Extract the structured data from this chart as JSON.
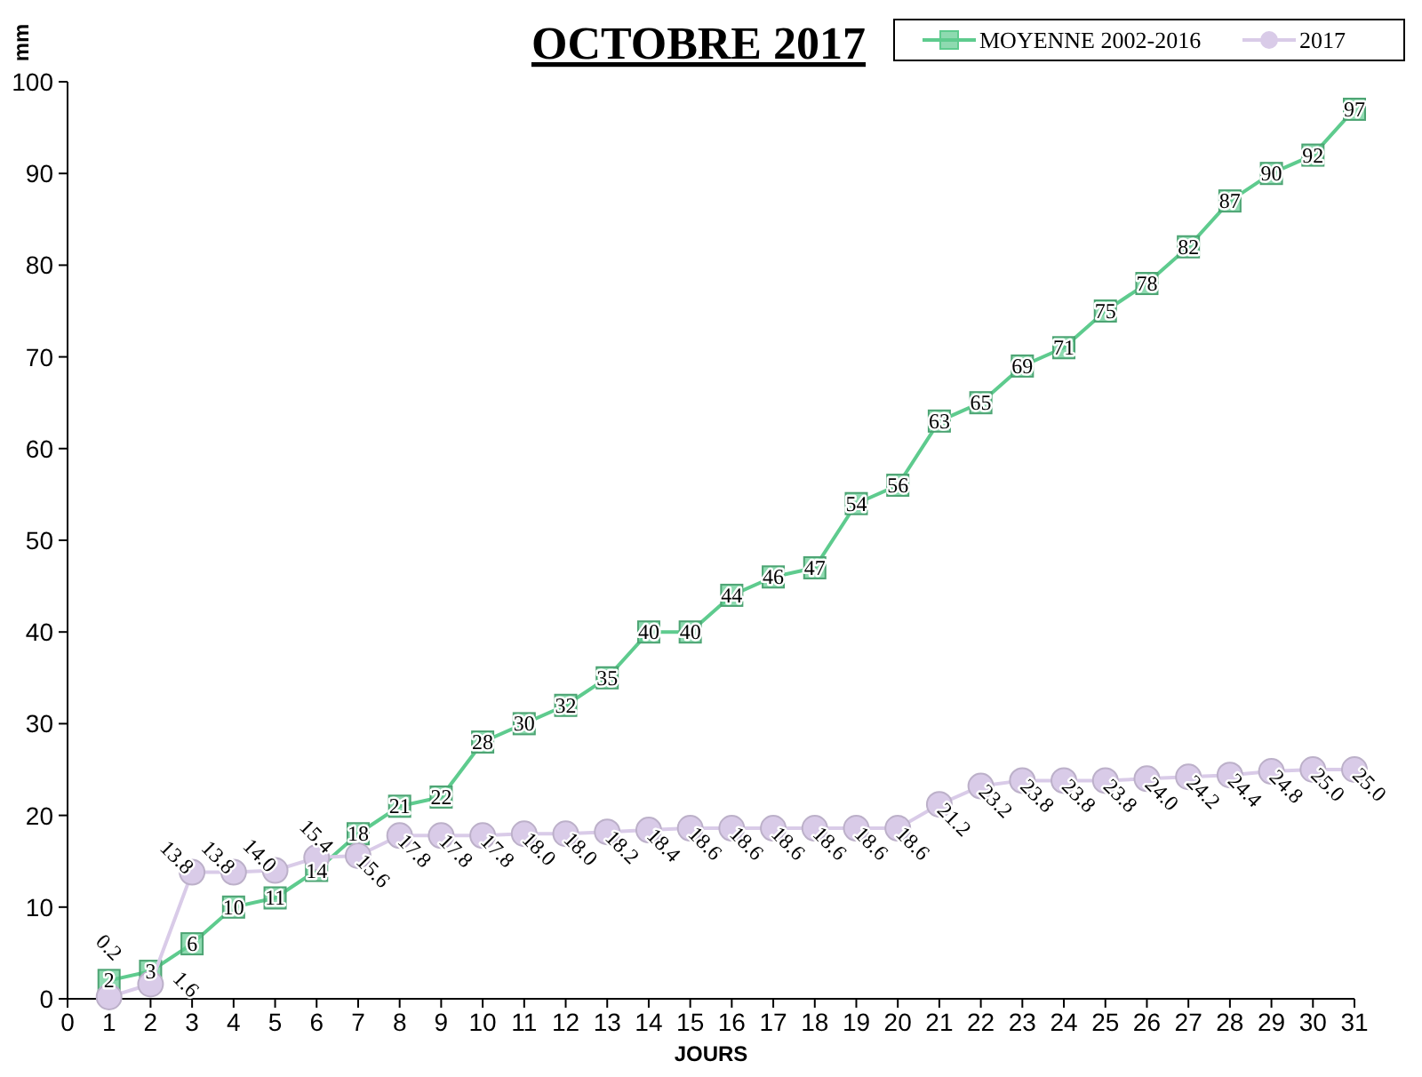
{
  "chart_data": {
    "type": "line",
    "title": "OCTOBRE 2017",
    "xlabel": "JOURS",
    "ylabel": "mm",
    "x": [
      1,
      2,
      3,
      4,
      5,
      6,
      7,
      8,
      9,
      10,
      11,
      12,
      13,
      14,
      15,
      16,
      17,
      18,
      19,
      20,
      21,
      22,
      23,
      24,
      25,
      26,
      27,
      28,
      29,
      30,
      31
    ],
    "xlim": [
      0,
      31
    ],
    "xticks": [
      0,
      1,
      2,
      3,
      4,
      5,
      6,
      7,
      8,
      9,
      10,
      11,
      12,
      13,
      14,
      15,
      16,
      17,
      18,
      19,
      20,
      21,
      22,
      23,
      24,
      25,
      26,
      27,
      28,
      29,
      30,
      31
    ],
    "ylim": [
      0,
      100
    ],
    "yticks": [
      0,
      10,
      20,
      30,
      40,
      50,
      60,
      70,
      80,
      90,
      100
    ],
    "grid": false,
    "legend": "top right",
    "series": [
      {
        "name": "MOYENNE 2002-2016",
        "color": "#5ecb8e",
        "marker": "square",
        "values": [
          2,
          3,
          6,
          10,
          11,
          14,
          18,
          21,
          22,
          28,
          30,
          32,
          35,
          40,
          40,
          44,
          46,
          47,
          54,
          56,
          63,
          65,
          69,
          71,
          75,
          78,
          82,
          87,
          90,
          92,
          97
        ],
        "value_labels": [
          "2",
          "3",
          "6",
          "10",
          "11",
          "14",
          "18",
          "21",
          "22",
          "28",
          "30",
          "32",
          "35",
          "40",
          "40",
          "44",
          "46",
          "47",
          "54",
          "56",
          "63",
          "65",
          "69",
          "71",
          "75",
          "78",
          "82",
          "87",
          "90",
          "92",
          "97"
        ]
      },
      {
        "name": "2017",
        "color": "#d9cbe8",
        "marker": "circle",
        "values": [
          0.2,
          1.6,
          13.8,
          13.8,
          14.0,
          15.4,
          15.6,
          17.8,
          17.8,
          17.8,
          18.0,
          18.0,
          18.2,
          18.4,
          18.6,
          18.6,
          18.6,
          18.6,
          18.6,
          18.6,
          21.2,
          23.2,
          23.8,
          23.8,
          23.8,
          24.0,
          24.2,
          24.4,
          24.8,
          25.0,
          25.0
        ],
        "value_labels": [
          "0.2",
          "1.6",
          "13.8",
          "13.8",
          "14.0",
          "15.4",
          "15.6",
          "17.8",
          "17.8",
          "17.8",
          "18.0",
          "18.0",
          "18.2",
          "18.4",
          "18.6",
          "18.6",
          "18.6",
          "18.6",
          "18.6",
          "18.6",
          "21.2",
          "23.2",
          "23.8",
          "23.8",
          "23.8",
          "24.0",
          "24.2",
          "24.4",
          "24.8",
          "25.0",
          "25.0"
        ]
      }
    ]
  }
}
